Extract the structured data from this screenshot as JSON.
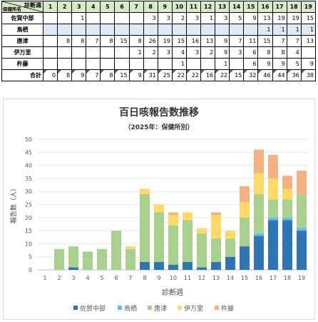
{
  "table": {
    "corner_top": "診断週",
    "corner_bottom": "保健所名",
    "weeks": [
      "1",
      "2",
      "3",
      "4",
      "5",
      "6",
      "7",
      "8",
      "9",
      "10",
      "11",
      "12",
      "13",
      "14",
      "15",
      "16",
      "17",
      "18",
      "19"
    ],
    "rows": [
      {
        "name": "佐賀中部",
        "cells": [
          "",
          "",
          "1",
          "",
          "",
          "",
          "",
          "3",
          "3",
          "2",
          "3",
          "1",
          "3",
          "5",
          "9",
          "13",
          "19",
          "19",
          "15"
        ]
      },
      {
        "name": "鳥栖",
        "cells": [
          "",
          "",
          "",
          "",
          "",
          "",
          "",
          "",
          "",
          "",
          "",
          "",
          "",
          "",
          "",
          "1",
          "1",
          "1",
          "1"
        ]
      },
      {
        "name": "唐津",
        "cells": [
          "",
          "8",
          "8",
          "7",
          "8",
          "15",
          "8",
          "26",
          "19",
          "15",
          "16",
          "13",
          "9",
          "7",
          "11",
          "15",
          "7",
          "7",
          "13"
        ]
      },
      {
        "name": "伊万里",
        "cells": [
          "",
          "",
          "",
          "",
          "",
          "",
          "1",
          "2",
          "3",
          "4",
          "3",
          "2",
          "9",
          "3",
          "6",
          "8",
          "8",
          "4",
          ""
        ]
      },
      {
        "name": "杵藤",
        "cells": [
          "",
          "",
          "",
          "",
          "",
          "",
          "",
          "",
          "",
          "1",
          "",
          "",
          "1",
          "",
          "6",
          "9",
          "9",
          "5",
          "9"
        ]
      }
    ],
    "total_label": "合計",
    "totals": [
      "0",
      "8",
      "9",
      "7",
      "8",
      "15",
      "9",
      "31",
      "25",
      "22",
      "22",
      "16",
      "22",
      "15",
      "32",
      "46",
      "44",
      "36",
      "38"
    ]
  },
  "chart_data": {
    "type": "bar",
    "stacked": true,
    "title": "百日咳報告数推移",
    "subtitle": "（2025年：保健所別）",
    "xlabel": "診断週",
    "ylabel": "報告数（人）",
    "ylim": [
      0,
      50
    ],
    "yticks": [
      0,
      5,
      10,
      15,
      20,
      25,
      30,
      35,
      40,
      45,
      50
    ],
    "grid": true,
    "legend_position": "bottom",
    "categories": [
      "1",
      "2",
      "3",
      "4",
      "5",
      "6",
      "7",
      "8",
      "9",
      "10",
      "11",
      "12",
      "13",
      "14",
      "15",
      "16",
      "17",
      "18",
      "19"
    ],
    "series": [
      {
        "name": "佐賀中部",
        "color": "#2e75b6",
        "values": [
          0,
          0,
          1,
          0,
          0,
          0,
          0,
          3,
          3,
          2,
          3,
          1,
          3,
          5,
          9,
          13,
          19,
          19,
          15
        ]
      },
      {
        "name": "鳥栖",
        "color": "#5bc0eb",
        "values": [
          0,
          0,
          0,
          0,
          0,
          0,
          0,
          0,
          0,
          0,
          0,
          0,
          0,
          0,
          0,
          1,
          1,
          1,
          1
        ]
      },
      {
        "name": "唐津",
        "color": "#a9d18e",
        "values": [
          0,
          8,
          8,
          7,
          8,
          15,
          8,
          26,
          19,
          15,
          16,
          13,
          9,
          7,
          11,
          15,
          7,
          7,
          13
        ]
      },
      {
        "name": "伊万里",
        "color": "#ffd966",
        "values": [
          0,
          0,
          0,
          0,
          0,
          0,
          1,
          2,
          3,
          4,
          3,
          2,
          9,
          3,
          6,
          8,
          8,
          4,
          0
        ]
      },
      {
        "name": "杵藤",
        "color": "#f4b183",
        "values": [
          0,
          0,
          0,
          0,
          0,
          0,
          0,
          0,
          0,
          1,
          0,
          0,
          1,
          0,
          6,
          9,
          9,
          5,
          9
        ]
      }
    ]
  }
}
